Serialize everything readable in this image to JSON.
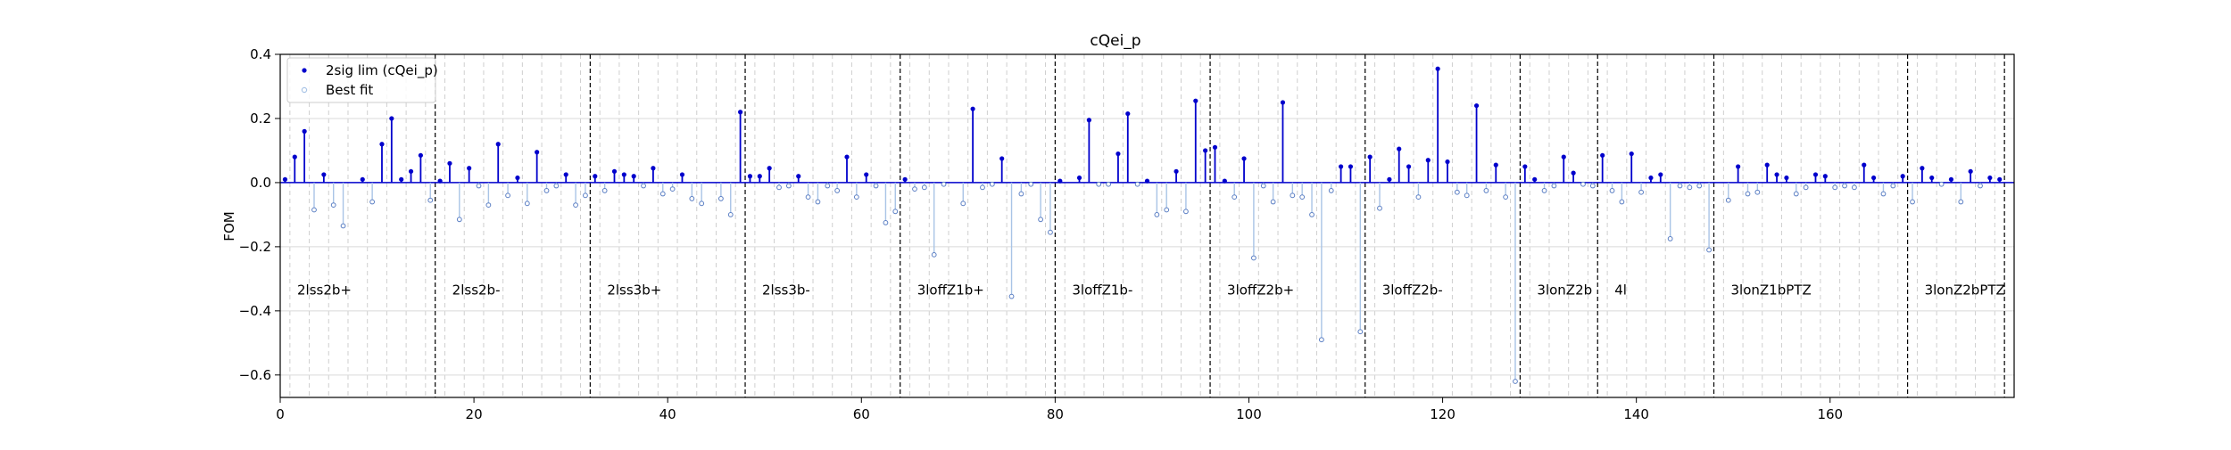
{
  "chart_data": {
    "type": "stem",
    "title": "cQei_p",
    "xlabel": "",
    "ylabel": "FOM",
    "xlim": [
      0,
      179
    ],
    "ylim": [
      -0.67,
      0.4
    ],
    "xticks": [
      0,
      20,
      40,
      60,
      80,
      100,
      120,
      140,
      160
    ],
    "yticks": [
      -0.6,
      -0.4,
      -0.2,
      0.0,
      0.2,
      0.4
    ],
    "ytick_labels": [
      "−0.6",
      "−0.4",
      "−0.2",
      "0.0",
      "0.2",
      "0.4"
    ],
    "grid": true,
    "legend": {
      "placement": "top-left",
      "entries": [
        "2sig lim (cQei_p)",
        "Best fit"
      ]
    },
    "colors": {
      "sig": "#0000cc",
      "fit": "#a9c4e6",
      "zero": "#0000cc"
    },
    "regions": [
      {
        "label": "2lss2b+",
        "start": 0,
        "end": 16
      },
      {
        "label": "2lss2b-",
        "start": 16,
        "end": 32
      },
      {
        "label": "2lss3b+",
        "start": 32,
        "end": 48
      },
      {
        "label": "2lss3b-",
        "start": 48,
        "end": 64
      },
      {
        "label": "3loffZ1b+",
        "start": 64,
        "end": 80
      },
      {
        "label": "3loffZ1b-",
        "start": 80,
        "end": 96
      },
      {
        "label": "3loffZ2b+",
        "start": 96,
        "end": 112
      },
      {
        "label": "3loffZ2b-",
        "start": 112,
        "end": 128
      },
      {
        "label": "3lonZ2b",
        "start": 128,
        "end": 136
      },
      {
        "label": "4l",
        "start": 136,
        "end": 148
      },
      {
        "label": "3lonZ1bPTZ",
        "start": 148,
        "end": 168
      },
      {
        "label": "3lonZ2bPTZ",
        "start": 168,
        "end": 178
      }
    ],
    "region_label_y": -0.335,
    "series": [
      {
        "name": "2sig lim (cQei_p)",
        "x": [
          0.5,
          1.5,
          2.5,
          4.5,
          8.5,
          10.5,
          11.5,
          12.5,
          13.5,
          14.5,
          16.5,
          17.5,
          19.5,
          22.5,
          24.5,
          26.5,
          29.5,
          32.5,
          34.5,
          35.5,
          36.5,
          38.5,
          41.5,
          47.5,
          48.5,
          49.5,
          50.5,
          53.5,
          58.5,
          60.5,
          64.5,
          71.5,
          74.5,
          80.5,
          82.5,
          83.5,
          86.5,
          87.5,
          89.5,
          92.5,
          94.5,
          95.5,
          96.5,
          97.5,
          99.5,
          103.5,
          109.5,
          110.5,
          112.5,
          114.5,
          115.5,
          116.5,
          118.5,
          119.5,
          120.5,
          123.5,
          125.5,
          128.5,
          129.5,
          132.5,
          133.5,
          136.5,
          139.5,
          141.5,
          142.5,
          150.5,
          153.5,
          154.5,
          155.5,
          158.5,
          159.5,
          163.5,
          164.5,
          167.5,
          169.5,
          170.5,
          172.5,
          174.5,
          176.5,
          177.5
        ],
        "y": [
          0.01,
          0.08,
          0.16,
          0.025,
          0.01,
          0.12,
          0.2,
          0.01,
          0.035,
          0.085,
          0.005,
          0.06,
          0.045,
          0.12,
          0.015,
          0.095,
          0.025,
          0.02,
          0.035,
          0.025,
          0.02,
          0.045,
          0.025,
          0.22,
          0.02,
          0.02,
          0.045,
          0.02,
          0.08,
          0.025,
          0.01,
          0.23,
          0.075,
          0.005,
          0.015,
          0.195,
          0.09,
          0.215,
          0.005,
          0.035,
          0.255,
          0.1,
          0.11,
          0.005,
          0.075,
          0.25,
          0.05,
          0.05,
          0.08,
          0.01,
          0.105,
          0.05,
          0.07,
          0.355,
          0.065,
          0.24,
          0.055,
          0.05,
          0.01,
          0.08,
          0.03,
          0.085,
          0.09,
          0.015,
          0.025,
          0.05,
          0.055,
          0.025,
          0.015,
          0.025,
          0.02,
          0.055,
          0.015,
          0.02,
          0.045,
          0.015,
          0.01,
          0.035,
          0.015,
          0.01
        ]
      },
      {
        "name": "Best fit",
        "x": [
          3.5,
          5.5,
          6.5,
          9.5,
          15.5,
          18.5,
          20.5,
          21.5,
          23.5,
          25.5,
          27.5,
          28.5,
          30.5,
          31.5,
          33.5,
          37.5,
          39.5,
          40.5,
          42.5,
          43.5,
          45.5,
          46.5,
          51.5,
          52.5,
          54.5,
          55.5,
          56.5,
          57.5,
          59.5,
          61.5,
          62.5,
          63.5,
          65.5,
          66.5,
          67.5,
          68.5,
          70.5,
          72.5,
          73.5,
          75.5,
          76.5,
          77.5,
          78.5,
          79.5,
          84.5,
          85.5,
          88.5,
          90.5,
          91.5,
          93.5,
          98.5,
          100.5,
          101.5,
          102.5,
          104.5,
          105.5,
          106.5,
          107.5,
          108.5,
          111.5,
          113.5,
          117.5,
          121.5,
          122.5,
          124.5,
          126.5,
          127.5,
          130.5,
          131.5,
          134.5,
          135.5,
          137.5,
          138.5,
          140.5,
          143.5,
          144.5,
          145.5,
          146.5,
          147.5,
          149.5,
          151.5,
          152.5,
          156.5,
          157.5,
          160.5,
          161.5,
          162.5,
          165.5,
          166.5,
          168.5,
          171.5,
          173.5,
          175.5
        ],
        "y": [
          -0.085,
          -0.07,
          -0.135,
          -0.06,
          -0.055,
          -0.115,
          -0.01,
          -0.07,
          -0.04,
          -0.065,
          -0.025,
          -0.01,
          -0.07,
          -0.04,
          -0.025,
          -0.01,
          -0.035,
          -0.02,
          -0.05,
          -0.065,
          -0.05,
          -0.1,
          -0.015,
          -0.01,
          -0.045,
          -0.06,
          -0.01,
          -0.025,
          -0.045,
          -0.01,
          -0.125,
          -0.09,
          -0.02,
          -0.015,
          -0.225,
          -0.005,
          -0.065,
          -0.015,
          -0.005,
          -0.355,
          -0.035,
          -0.005,
          -0.115,
          -0.155,
          -0.005,
          -0.005,
          -0.005,
          -0.1,
          -0.085,
          -0.09,
          -0.045,
          -0.235,
          -0.01,
          -0.06,
          -0.04,
          -0.045,
          -0.1,
          -0.49,
          -0.025,
          -0.465,
          -0.08,
          -0.045,
          -0.03,
          -0.04,
          -0.025,
          -0.045,
          -0.62,
          -0.025,
          -0.01,
          -0.005,
          -0.01,
          -0.025,
          -0.06,
          -0.03,
          -0.175,
          -0.01,
          -0.015,
          -0.01,
          -0.21,
          -0.055,
          -0.035,
          -0.03,
          -0.035,
          -0.015,
          -0.015,
          -0.01,
          -0.015,
          -0.035,
          -0.01,
          -0.06,
          -0.005,
          -0.06,
          -0.01
        ]
      }
    ]
  }
}
